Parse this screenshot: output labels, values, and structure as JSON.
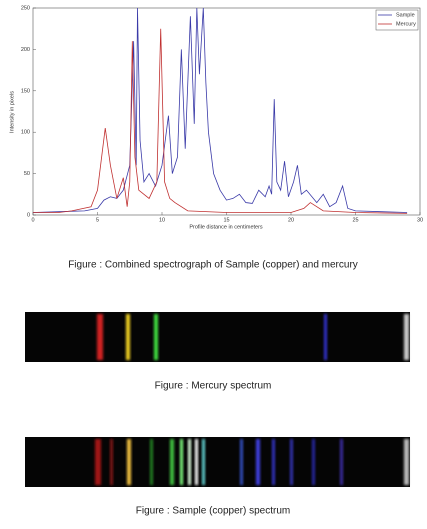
{
  "chart_data": {
    "type": "line",
    "xlabel": "Profile distance in centimeters",
    "ylabel": "Intensity in pixels",
    "xlim": [
      0,
      30
    ],
    "xticks": [
      0,
      5,
      10,
      15,
      20,
      25,
      30
    ],
    "ylim": [
      0,
      250
    ],
    "yticks": [
      0,
      50,
      100,
      150,
      200,
      250
    ],
    "legend": "upper right",
    "series": [
      {
        "name": "Sample",
        "color": "#3a3aa8",
        "x": [
          0,
          2,
          4,
          5,
          5.5,
          6,
          6.5,
          7,
          7.5,
          7.8,
          8.0,
          8.1,
          8.3,
          8.6,
          9,
          9.5,
          10,
          10.5,
          10.8,
          11.2,
          11.5,
          11.8,
          12.2,
          12.5,
          12.7,
          12.9,
          13.2,
          13.4,
          13.6,
          14,
          14.5,
          15,
          15.5,
          16,
          16.5,
          17,
          17.5,
          18,
          18.3,
          18.5,
          18.7,
          18.9,
          19.2,
          19.5,
          19.8,
          20.2,
          20.5,
          20.8,
          21.2,
          22,
          22.5,
          23,
          23.5,
          24,
          24.4,
          25,
          27,
          29
        ],
        "values": [
          3,
          4,
          5,
          8,
          18,
          22,
          20,
          30,
          60,
          210,
          60,
          250,
          90,
          40,
          50,
          35,
          60,
          120,
          50,
          70,
          200,
          80,
          240,
          110,
          250,
          170,
          250,
          160,
          100,
          50,
          30,
          18,
          20,
          25,
          15,
          14,
          30,
          22,
          35,
          25,
          140,
          40,
          30,
          65,
          22,
          40,
          60,
          25,
          30,
          15,
          25,
          10,
          15,
          35,
          8,
          5,
          4,
          3
        ]
      },
      {
        "name": "Mercury",
        "color": "#c03030",
        "x": [
          0,
          2,
          3,
          4.5,
          5,
          5.6,
          6,
          6.5,
          7,
          7.3,
          7.5,
          7.7,
          7.9,
          8.2,
          9,
          9.6,
          9.9,
          10.2,
          10.6,
          11,
          12,
          15,
          20,
          21,
          21.5,
          22.5,
          25,
          29
        ],
        "values": [
          3,
          3,
          5,
          10,
          30,
          105,
          60,
          20,
          45,
          10,
          40,
          210,
          70,
          30,
          20,
          40,
          225,
          40,
          20,
          15,
          5,
          3,
          3,
          8,
          15,
          5,
          3,
          2
        ]
      }
    ]
  },
  "captions": [
    "Figure : Combined spectrograph of Sample (copper) and mercury",
    "Figure : Mercury spectrum",
    "Figure : Sample (copper) spectrum"
  ]
}
